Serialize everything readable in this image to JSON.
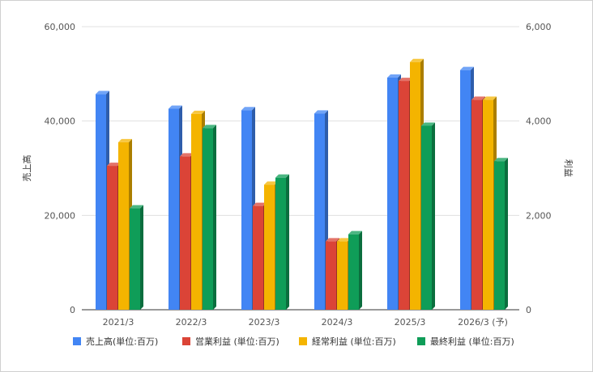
{
  "chart_data": {
    "type": "bar",
    "categories": [
      "2021/3",
      "2022/3",
      "2023/3",
      "2024/3",
      "2025/3",
      "2026/3 (予)"
    ],
    "left_axis": {
      "label": "売上高",
      "ylim": [
        0,
        60000
      ],
      "ticks": [
        "0",
        "20,000",
        "40,000",
        "60,000"
      ]
    },
    "right_axis": {
      "label": "利益",
      "ylim": [
        0,
        6000
      ],
      "ticks": [
        "0",
        "2,000",
        "4,000",
        "6,000"
      ]
    },
    "series": [
      {
        "name": "売上高(単位:百万)",
        "axis": "left",
        "color": "#4285F4",
        "values": [
          45700,
          42600,
          42300,
          41600,
          49200,
          50800
        ]
      },
      {
        "name": "営業利益 (単位:百万)",
        "axis": "right",
        "color": "#DB4437",
        "values": [
          3050,
          3250,
          2200,
          1450,
          4850,
          4450
        ]
      },
      {
        "name": "経常利益 (単位:百万)",
        "axis": "right",
        "color": "#F4B400",
        "values": [
          3550,
          4150,
          2650,
          1450,
          5250,
          4450
        ]
      },
      {
        "name": "最終利益 (単位:百万)",
        "axis": "right",
        "color": "#0F9D58",
        "values": [
          2150,
          3850,
          2800,
          1600,
          3900,
          3150
        ]
      }
    ],
    "grid": true,
    "legend_position": "bottom"
  }
}
